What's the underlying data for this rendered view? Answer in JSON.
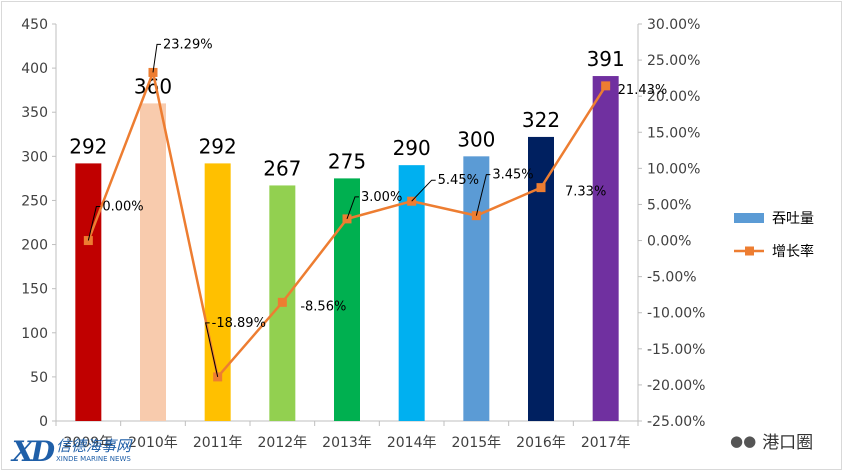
{
  "chart_data": {
    "type": "bar+line",
    "categories": [
      "2009年",
      "2010年",
      "2011年",
      "2012年",
      "2013年",
      "2014年",
      "2015年",
      "2016年",
      "2017年"
    ],
    "series": [
      {
        "name": "吞吐量",
        "type": "bar",
        "axis": "left",
        "values": [
          292,
          360,
          292,
          267,
          275,
          290,
          300,
          322,
          391
        ],
        "labels": [
          "292",
          "360",
          "292",
          "267",
          "275",
          "290",
          "300",
          "322",
          "391"
        ],
        "colors": [
          "#c00000",
          "#f8cbad",
          "#ffc000",
          "#92d050",
          "#00b050",
          "#00b0f0",
          "#5b9bd5",
          "#002060",
          "#7030a0"
        ],
        "legend_color": "#5b9bd5"
      },
      {
        "name": "增长率",
        "type": "line",
        "axis": "right",
        "values": [
          0.0,
          23.29,
          -18.89,
          -8.56,
          3.0,
          5.45,
          3.45,
          7.33,
          21.43
        ],
        "labels": [
          "0.00%",
          "23.29%",
          "-18.89%",
          "-8.56%",
          "3.00%",
          "5.45%",
          "3.45%",
          "7.33%",
          "21.43%"
        ],
        "color": "#ed7d31"
      }
    ],
    "y_left": {
      "range": [
        0,
        450
      ],
      "ticks": [
        "0",
        "50",
        "100",
        "150",
        "200",
        "250",
        "300",
        "350",
        "400",
        "450"
      ]
    },
    "y_right": {
      "range": [
        -25,
        30
      ],
      "ticks": [
        "-25.00%",
        "-20.00%",
        "-15.00%",
        "-10.00%",
        "-5.00%",
        "0.00%",
        "5.00%",
        "10.00%",
        "15.00%",
        "20.00%",
        "25.00%",
        "30.00%"
      ]
    },
    "grid": false,
    "legend_position": "right"
  },
  "logo": {
    "mark": "XD",
    "cn": "信德海事网",
    "en": "XINDE MARINE NEWS"
  },
  "watermark": {
    "text": "港口圈"
  }
}
